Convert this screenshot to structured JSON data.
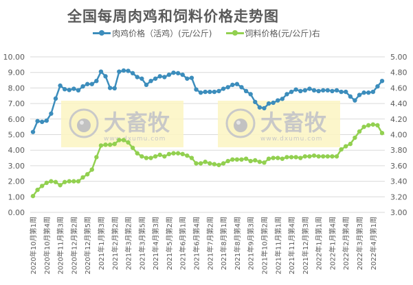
{
  "chart_data": {
    "type": "line",
    "title": "全国每周肉鸡和饲料价格走势图",
    "xlabel": "",
    "ylabel": "",
    "grid": true,
    "legend_position": "top",
    "left_axis": {
      "ylim": [
        0,
        10
      ],
      "ticks": [
        "0.00",
        "1.00",
        "2.00",
        "3.00",
        "4.00",
        "5.00",
        "6.00",
        "7.00",
        "8.00",
        "9.00",
        "10.00"
      ]
    },
    "right_axis": {
      "ylim": [
        3.0,
        5.0
      ],
      "ticks": [
        "3.00",
        "3.20",
        "3.40",
        "3.60",
        "3.80",
        "4.00",
        "4.20",
        "4.40",
        "4.60",
        "4.80",
        "5.00"
      ]
    },
    "categories": [
      "2020年10月第1周",
      "2020年10月第4周",
      "2020年11月第3周",
      "2020年12月第2周",
      "2020年12月第5周",
      "2021年1月第3周",
      "2021年2月第2周",
      "2021年3月第2周",
      "2021年3月第5周",
      "2021年4月第3周",
      "2021年5月第2周",
      "2021年6月第1周",
      "2021年6月第4周",
      "2021年7月第2周",
      "2021年8月第1周",
      "2021年8月第4周",
      "2021年9月第3周",
      "2021年10月第2周",
      "2021年11月第1周",
      "2021年11月第4周",
      "2021年12月第3周",
      "2022年1月第1周",
      "2022年1月第4周",
      "2022年2月第4周",
      "2022年3月第3周",
      "2022年4月第1周"
    ],
    "series": [
      {
        "name": "肉鸡价格（活鸡）(元/公斤)",
        "axis": "left",
        "color": "#3c8dbc",
        "values": [
          5.17,
          5.87,
          5.82,
          5.9,
          6.35,
          7.32,
          8.15,
          7.92,
          7.87,
          7.95,
          7.85,
          8.1,
          8.25,
          8.25,
          8.45,
          9.05,
          8.75,
          8.0,
          7.98,
          9.05,
          9.12,
          9.1,
          8.95,
          8.7,
          8.6,
          8.2,
          8.45,
          8.6,
          8.75,
          8.7,
          8.85,
          8.98,
          8.95,
          8.85,
          8.6,
          8.65,
          7.9,
          7.7,
          7.75,
          7.75,
          7.75,
          7.8,
          7.95,
          8.05,
          8.2,
          8.25,
          8.05,
          7.8,
          7.6,
          7.1,
          6.75,
          6.7,
          7.0,
          7.05,
          7.2,
          7.3,
          7.6,
          7.75,
          7.9,
          7.8,
          7.85,
          7.95,
          7.85,
          7.8,
          7.85,
          7.85,
          7.8,
          7.85,
          7.75,
          7.75,
          7.45,
          7.2,
          7.55,
          7.7,
          7.7,
          7.75,
          8.1,
          8.45
        ]
      },
      {
        "name": "饲料价格(元/公斤)右",
        "axis": "right",
        "color": "#92d050",
        "values": [
          3.21,
          3.29,
          3.34,
          3.38,
          3.4,
          3.39,
          3.35,
          3.39,
          3.4,
          3.4,
          3.4,
          3.45,
          3.49,
          3.55,
          3.71,
          3.86,
          3.87,
          3.87,
          3.88,
          3.93,
          3.93,
          3.9,
          3.83,
          3.76,
          3.72,
          3.7,
          3.7,
          3.72,
          3.74,
          3.72,
          3.75,
          3.76,
          3.76,
          3.75,
          3.73,
          3.7,
          3.63,
          3.63,
          3.65,
          3.63,
          3.62,
          3.61,
          3.63,
          3.66,
          3.68,
          3.68,
          3.68,
          3.69,
          3.66,
          3.67,
          3.65,
          3.64,
          3.69,
          3.7,
          3.7,
          3.69,
          3.71,
          3.71,
          3.71,
          3.7,
          3.72,
          3.72,
          3.73,
          3.72,
          3.72,
          3.72,
          3.72,
          3.72,
          3.81,
          3.85,
          3.88,
          3.96,
          4.04,
          4.1,
          4.12,
          4.13,
          4.12,
          4.02
        ]
      }
    ]
  },
  "watermark": {
    "brand": "大畜牧",
    "url": "www.dxumu.com"
  }
}
